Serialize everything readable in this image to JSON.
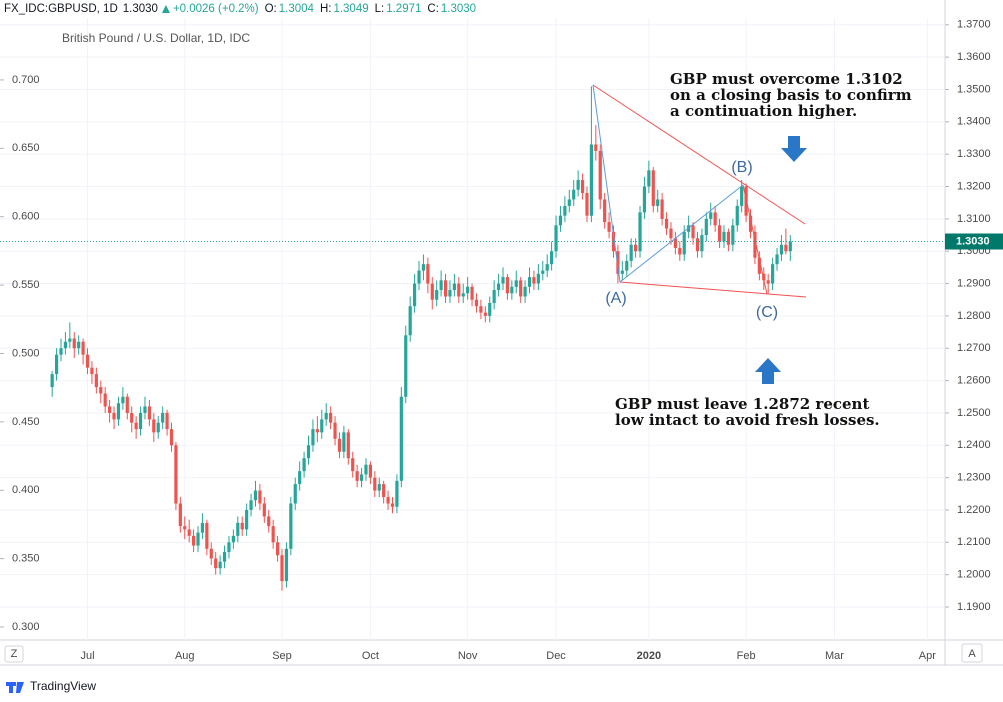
{
  "chart_data": {
    "type": "candlestick",
    "header": {
      "symbol": "FX_IDC:GBPUSD, 1D",
      "price": "1.3030",
      "change": "+0.0026 (+0.2%)",
      "ohlc": [
        {
          "label": "O:",
          "value": "1.3004"
        },
        {
          "label": "H:",
          "value": "1.3049"
        },
        {
          "label": "L:",
          "value": "1.2971"
        },
        {
          "label": "C:",
          "value": "1.3030"
        }
      ]
    },
    "subtitle": "British Pound / U.S. Dollar, 1D, IDC",
    "annotations": [
      [
        "GBP must overcome 1.3102",
        "on a closing basis to confirm",
        "a continuation higher."
      ],
      [
        "GBP must leave 1.2872 recent",
        "low intact to avoid fresh losses."
      ]
    ],
    "points": [
      "(A)",
      "(B)",
      "(C)"
    ],
    "last_price": {
      "value": 1.303,
      "label": "1.3030"
    },
    "xlim": [
      -11.8,
      202
    ],
    "xticks": [
      {
        "value": 8,
        "label": "Jul"
      },
      {
        "value": 30,
        "label": "Aug"
      },
      {
        "value": 52,
        "label": "Sep"
      },
      {
        "value": 72,
        "label": "Oct"
      },
      {
        "value": 94,
        "label": "Nov"
      },
      {
        "value": 114,
        "label": "Dec"
      },
      {
        "value": 135,
        "label": "2020"
      },
      {
        "value": 157,
        "label": "Feb"
      },
      {
        "value": 177,
        "label": "Mar"
      },
      {
        "value": 198,
        "label": "Apr"
      }
    ],
    "ylim": [
      0.2905,
      0.7453
    ],
    "yticks": [
      {
        "value": 0.3,
        "label": "0.300"
      },
      {
        "value": 0.35,
        "label": "0.350"
      },
      {
        "value": 0.4,
        "label": "0.400"
      },
      {
        "value": 0.45,
        "label": "0.450"
      },
      {
        "value": 0.5,
        "label": "0.500"
      },
      {
        "value": 0.55,
        "label": "0.550"
      },
      {
        "value": 0.6,
        "label": "0.600"
      },
      {
        "value": 0.65,
        "label": "0.650"
      },
      {
        "value": 0.7,
        "label": "0.700"
      }
    ],
    "y2lim": [
      1.1798,
      1.3721
    ],
    "y2ticks": [
      {
        "value": 1.19,
        "label": "1.1900"
      },
      {
        "value": 1.2,
        "label": "1.2000"
      },
      {
        "value": 1.21,
        "label": "1.2100"
      },
      {
        "value": 1.22,
        "label": "1.2200"
      },
      {
        "value": 1.23,
        "label": "1.2300"
      },
      {
        "value": 1.24,
        "label": "1.2400"
      },
      {
        "value": 1.25,
        "label": "1.2500"
      },
      {
        "value": 1.26,
        "label": "1.2600"
      },
      {
        "value": 1.27,
        "label": "1.2700"
      },
      {
        "value": 1.28,
        "label": "1.2800"
      },
      {
        "value": 1.29,
        "label": "1.2900"
      },
      {
        "value": 1.3,
        "label": "1.3000"
      },
      {
        "value": 1.31,
        "label": "1.3100"
      },
      {
        "value": 1.32,
        "label": "1.3200"
      },
      {
        "value": 1.33,
        "label": "1.3300"
      },
      {
        "value": 1.34,
        "label": "1.3400"
      },
      {
        "value": 1.35,
        "label": "1.3500"
      },
      {
        "value": 1.36,
        "label": "1.3600"
      },
      {
        "value": 1.37,
        "label": "1.3700"
      }
    ],
    "grid": true,
    "up_color": "#26a69a",
    "down_color": "#ef5350",
    "ohlc": [
      [
        1.258,
        1.263,
        1.255,
        1.262
      ],
      [
        1.262,
        1.27,
        1.26,
        1.268
      ],
      [
        1.268,
        1.273,
        1.266,
        1.27
      ],
      [
        1.27,
        1.275,
        1.268,
        1.272
      ],
      [
        1.272,
        1.278,
        1.27,
        1.273
      ],
      [
        1.273,
        1.275,
        1.267,
        1.27
      ],
      [
        1.27,
        1.274,
        1.268,
        1.272
      ],
      [
        1.272,
        1.273,
        1.265,
        1.268
      ],
      [
        1.268,
        1.27,
        1.262,
        1.264
      ],
      [
        1.264,
        1.266,
        1.259,
        1.262
      ],
      [
        1.262,
        1.264,
        1.256,
        1.258
      ],
      [
        1.258,
        1.26,
        1.253,
        1.256
      ],
      [
        1.256,
        1.258,
        1.25,
        1.252
      ],
      [
        1.252,
        1.254,
        1.247,
        1.25
      ],
      [
        1.25,
        1.252,
        1.245,
        1.248
      ],
      [
        1.248,
        1.255,
        1.246,
        1.253
      ],
      [
        1.253,
        1.258,
        1.251,
        1.255
      ],
      [
        1.255,
        1.256,
        1.248,
        1.25
      ],
      [
        1.25,
        1.252,
        1.244,
        1.247
      ],
      [
        1.247,
        1.249,
        1.242,
        1.245
      ],
      [
        1.245,
        1.252,
        1.243,
        1.25
      ],
      [
        1.25,
        1.255,
        1.248,
        1.252
      ],
      [
        1.252,
        1.254,
        1.246,
        1.248
      ],
      [
        1.248,
        1.25,
        1.241,
        1.244
      ],
      [
        1.244,
        1.249,
        1.242,
        1.247
      ],
      [
        1.247,
        1.252,
        1.245,
        1.25
      ],
      [
        1.25,
        1.251,
        1.243,
        1.245
      ],
      [
        1.245,
        1.247,
        1.238,
        1.24
      ],
      [
        1.24,
        1.241,
        1.22,
        1.222
      ],
      [
        1.222,
        1.224,
        1.213,
        1.215
      ],
      [
        1.215,
        1.218,
        1.211,
        1.214
      ],
      [
        1.214,
        1.217,
        1.21,
        1.212
      ],
      [
        1.212,
        1.214,
        1.207,
        1.209
      ],
      [
        1.209,
        1.215,
        1.207,
        1.213
      ],
      [
        1.213,
        1.219,
        1.211,
        1.216
      ],
      [
        1.216,
        1.217,
        1.206,
        1.208
      ],
      [
        1.208,
        1.21,
        1.203,
        1.205
      ],
      [
        1.205,
        1.207,
        1.2,
        1.202
      ],
      [
        1.202,
        1.206,
        1.2,
        1.204
      ],
      [
        1.204,
        1.209,
        1.202,
        1.207
      ],
      [
        1.207,
        1.212,
        1.205,
        1.21
      ],
      [
        1.21,
        1.214,
        1.208,
        1.212
      ],
      [
        1.212,
        1.218,
        1.21,
        1.216
      ],
      [
        1.216,
        1.218,
        1.212,
        1.214
      ],
      [
        1.214,
        1.222,
        1.212,
        1.22
      ],
      [
        1.22,
        1.225,
        1.218,
        1.223
      ],
      [
        1.223,
        1.229,
        1.221,
        1.226
      ],
      [
        1.226,
        1.228,
        1.22,
        1.222
      ],
      [
        1.222,
        1.224,
        1.216,
        1.218
      ],
      [
        1.218,
        1.22,
        1.213,
        1.215
      ],
      [
        1.215,
        1.217,
        1.208,
        1.21
      ],
      [
        1.21,
        1.212,
        1.204,
        1.206
      ],
      [
        1.206,
        1.208,
        1.195,
        1.198
      ],
      [
        1.198,
        1.21,
        1.196,
        1.208
      ],
      [
        1.208,
        1.224,
        1.206,
        1.222
      ],
      [
        1.222,
        1.23,
        1.22,
        1.228
      ],
      [
        1.228,
        1.235,
        1.226,
        1.232
      ],
      [
        1.232,
        1.238,
        1.23,
        1.236
      ],
      [
        1.236,
        1.243,
        1.234,
        1.24
      ],
      [
        1.24,
        1.248,
        1.238,
        1.245
      ],
      [
        1.245,
        1.249,
        1.241,
        1.244
      ],
      [
        1.244,
        1.251,
        1.242,
        1.248
      ],
      [
        1.248,
        1.253,
        1.246,
        1.25
      ],
      [
        1.25,
        1.252,
        1.245,
        1.247
      ],
      [
        1.247,
        1.249,
        1.24,
        1.242
      ],
      [
        1.242,
        1.244,
        1.236,
        1.238
      ],
      [
        1.238,
        1.246,
        1.236,
        1.244
      ],
      [
        1.244,
        1.245,
        1.234,
        1.236
      ],
      [
        1.236,
        1.238,
        1.23,
        1.232
      ],
      [
        1.232,
        1.234,
        1.227,
        1.229
      ],
      [
        1.229,
        1.233,
        1.227,
        1.231
      ],
      [
        1.231,
        1.236,
        1.229,
        1.234
      ],
      [
        1.234,
        1.235,
        1.228,
        1.23
      ],
      [
        1.23,
        1.232,
        1.224,
        1.226
      ],
      [
        1.226,
        1.23,
        1.224,
        1.228
      ],
      [
        1.228,
        1.229,
        1.222,
        1.224
      ],
      [
        1.224,
        1.226,
        1.22,
        1.222
      ],
      [
        1.222,
        1.224,
        1.219,
        1.221
      ],
      [
        1.221,
        1.231,
        1.219,
        1.229
      ],
      [
        1.229,
        1.258,
        1.227,
        1.255
      ],
      [
        1.255,
        1.277,
        1.253,
        1.274
      ],
      [
        1.274,
        1.286,
        1.272,
        1.283
      ],
      [
        1.283,
        1.293,
        1.281,
        1.29
      ],
      [
        1.29,
        1.297,
        1.288,
        1.294
      ],
      [
        1.294,
        1.299,
        1.291,
        1.296
      ],
      [
        1.296,
        1.298,
        1.287,
        1.29
      ],
      [
        1.29,
        1.292,
        1.282,
        1.285
      ],
      [
        1.285,
        1.291,
        1.283,
        1.288
      ],
      [
        1.288,
        1.294,
        1.286,
        1.291
      ],
      [
        1.291,
        1.293,
        1.284,
        1.286
      ],
      [
        1.286,
        1.291,
        1.284,
        1.288
      ],
      [
        1.288,
        1.293,
        1.286,
        1.29
      ],
      [
        1.29,
        1.292,
        1.284,
        1.286
      ],
      [
        1.286,
        1.29,
        1.284,
        1.287
      ],
      [
        1.287,
        1.292,
        1.285,
        1.289
      ],
      [
        1.289,
        1.29,
        1.283,
        1.285
      ],
      [
        1.285,
        1.287,
        1.281,
        1.283
      ],
      [
        1.283,
        1.285,
        1.279,
        1.281
      ],
      [
        1.281,
        1.283,
        1.278,
        1.28
      ],
      [
        1.28,
        1.286,
        1.278,
        1.284
      ],
      [
        1.284,
        1.291,
        1.282,
        1.288
      ],
      [
        1.288,
        1.293,
        1.286,
        1.29
      ],
      [
        1.29,
        1.295,
        1.288,
        1.292
      ],
      [
        1.292,
        1.293,
        1.285,
        1.287
      ],
      [
        1.287,
        1.291,
        1.285,
        1.289
      ],
      [
        1.289,
        1.294,
        1.287,
        1.291
      ],
      [
        1.291,
        1.292,
        1.284,
        1.286
      ],
      [
        1.286,
        1.291,
        1.284,
        1.289
      ],
      [
        1.289,
        1.295,
        1.287,
        1.292
      ],
      [
        1.292,
        1.294,
        1.288,
        1.29
      ],
      [
        1.29,
        1.296,
        1.288,
        1.293
      ],
      [
        1.293,
        1.297,
        1.291,
        1.294
      ],
      [
        1.294,
        1.299,
        1.292,
        1.296
      ],
      [
        1.296,
        1.303,
        1.294,
        1.3
      ],
      [
        1.3,
        1.311,
        1.298,
        1.308
      ],
      [
        1.308,
        1.314,
        1.306,
        1.311
      ],
      [
        1.311,
        1.317,
        1.309,
        1.314
      ],
      [
        1.314,
        1.319,
        1.312,
        1.316
      ],
      [
        1.316,
        1.322,
        1.314,
        1.319
      ],
      [
        1.319,
        1.325,
        1.317,
        1.322
      ],
      [
        1.322,
        1.324,
        1.316,
        1.318
      ],
      [
        1.318,
        1.32,
        1.309,
        1.311
      ],
      [
        1.311,
        1.351,
        1.309,
        1.333
      ],
      [
        1.333,
        1.339,
        1.328,
        1.331
      ],
      [
        1.331,
        1.333,
        1.313,
        1.316
      ],
      [
        1.316,
        1.318,
        1.307,
        1.309
      ],
      [
        1.309,
        1.312,
        1.304,
        1.306
      ],
      [
        1.306,
        1.308,
        1.298,
        1.3
      ],
      [
        1.3,
        1.302,
        1.29,
        1.293
      ],
      [
        1.293,
        1.297,
        1.291,
        1.294
      ],
      [
        1.294,
        1.299,
        1.292,
        1.297
      ],
      [
        1.297,
        1.304,
        1.295,
        1.302
      ],
      [
        1.302,
        1.304,
        1.298,
        1.3
      ],
      [
        1.3,
        1.314,
        1.298,
        1.312
      ],
      [
        1.312,
        1.323,
        1.31,
        1.32
      ],
      [
        1.32,
        1.328,
        1.318,
        1.325
      ],
      [
        1.325,
        1.326,
        1.312,
        1.314
      ],
      [
        1.314,
        1.319,
        1.312,
        1.316
      ],
      [
        1.316,
        1.318,
        1.308,
        1.31
      ],
      [
        1.31,
        1.312,
        1.305,
        1.307
      ],
      [
        1.307,
        1.309,
        1.302,
        1.304
      ],
      [
        1.304,
        1.306,
        1.299,
        1.301
      ],
      [
        1.301,
        1.303,
        1.297,
        1.299
      ],
      [
        1.299,
        1.308,
        1.297,
        1.306
      ],
      [
        1.306,
        1.311,
        1.304,
        1.308
      ],
      [
        1.308,
        1.309,
        1.302,
        1.304
      ],
      [
        1.304,
        1.306,
        1.298,
        1.3
      ],
      [
        1.3,
        1.307,
        1.298,
        1.305
      ],
      [
        1.305,
        1.312,
        1.303,
        1.31
      ],
      [
        1.31,
        1.315,
        1.308,
        1.312
      ],
      [
        1.312,
        1.314,
        1.306,
        1.308
      ],
      [
        1.308,
        1.31,
        1.301,
        1.303
      ],
      [
        1.303,
        1.308,
        1.301,
        1.306
      ],
      [
        1.306,
        1.307,
        1.3,
        1.302
      ],
      [
        1.302,
        1.31,
        1.3,
        1.308
      ],
      [
        1.308,
        1.316,
        1.306,
        1.314
      ],
      [
        1.314,
        1.322,
        1.312,
        1.32
      ],
      [
        1.32,
        1.321,
        1.309,
        1.311
      ],
      [
        1.311,
        1.313,
        1.304,
        1.306
      ],
      [
        1.306,
        1.308,
        1.296,
        1.298
      ],
      [
        1.298,
        1.3,
        1.291,
        1.293
      ],
      [
        1.293,
        1.295,
        1.288,
        1.291
      ],
      [
        1.291,
        1.293,
        1.287,
        1.29
      ],
      [
        1.29,
        1.298,
        1.288,
        1.296
      ],
      [
        1.296,
        1.301,
        1.294,
        1.299
      ],
      [
        1.299,
        1.305,
        1.297,
        1.302
      ],
      [
        1.302,
        1.307,
        1.299,
        1.3
      ],
      [
        1.3,
        1.305,
        1.297,
        1.303
      ]
    ],
    "footer": {
      "left": "Z",
      "right": "A",
      "brand": "TradingView"
    }
  }
}
